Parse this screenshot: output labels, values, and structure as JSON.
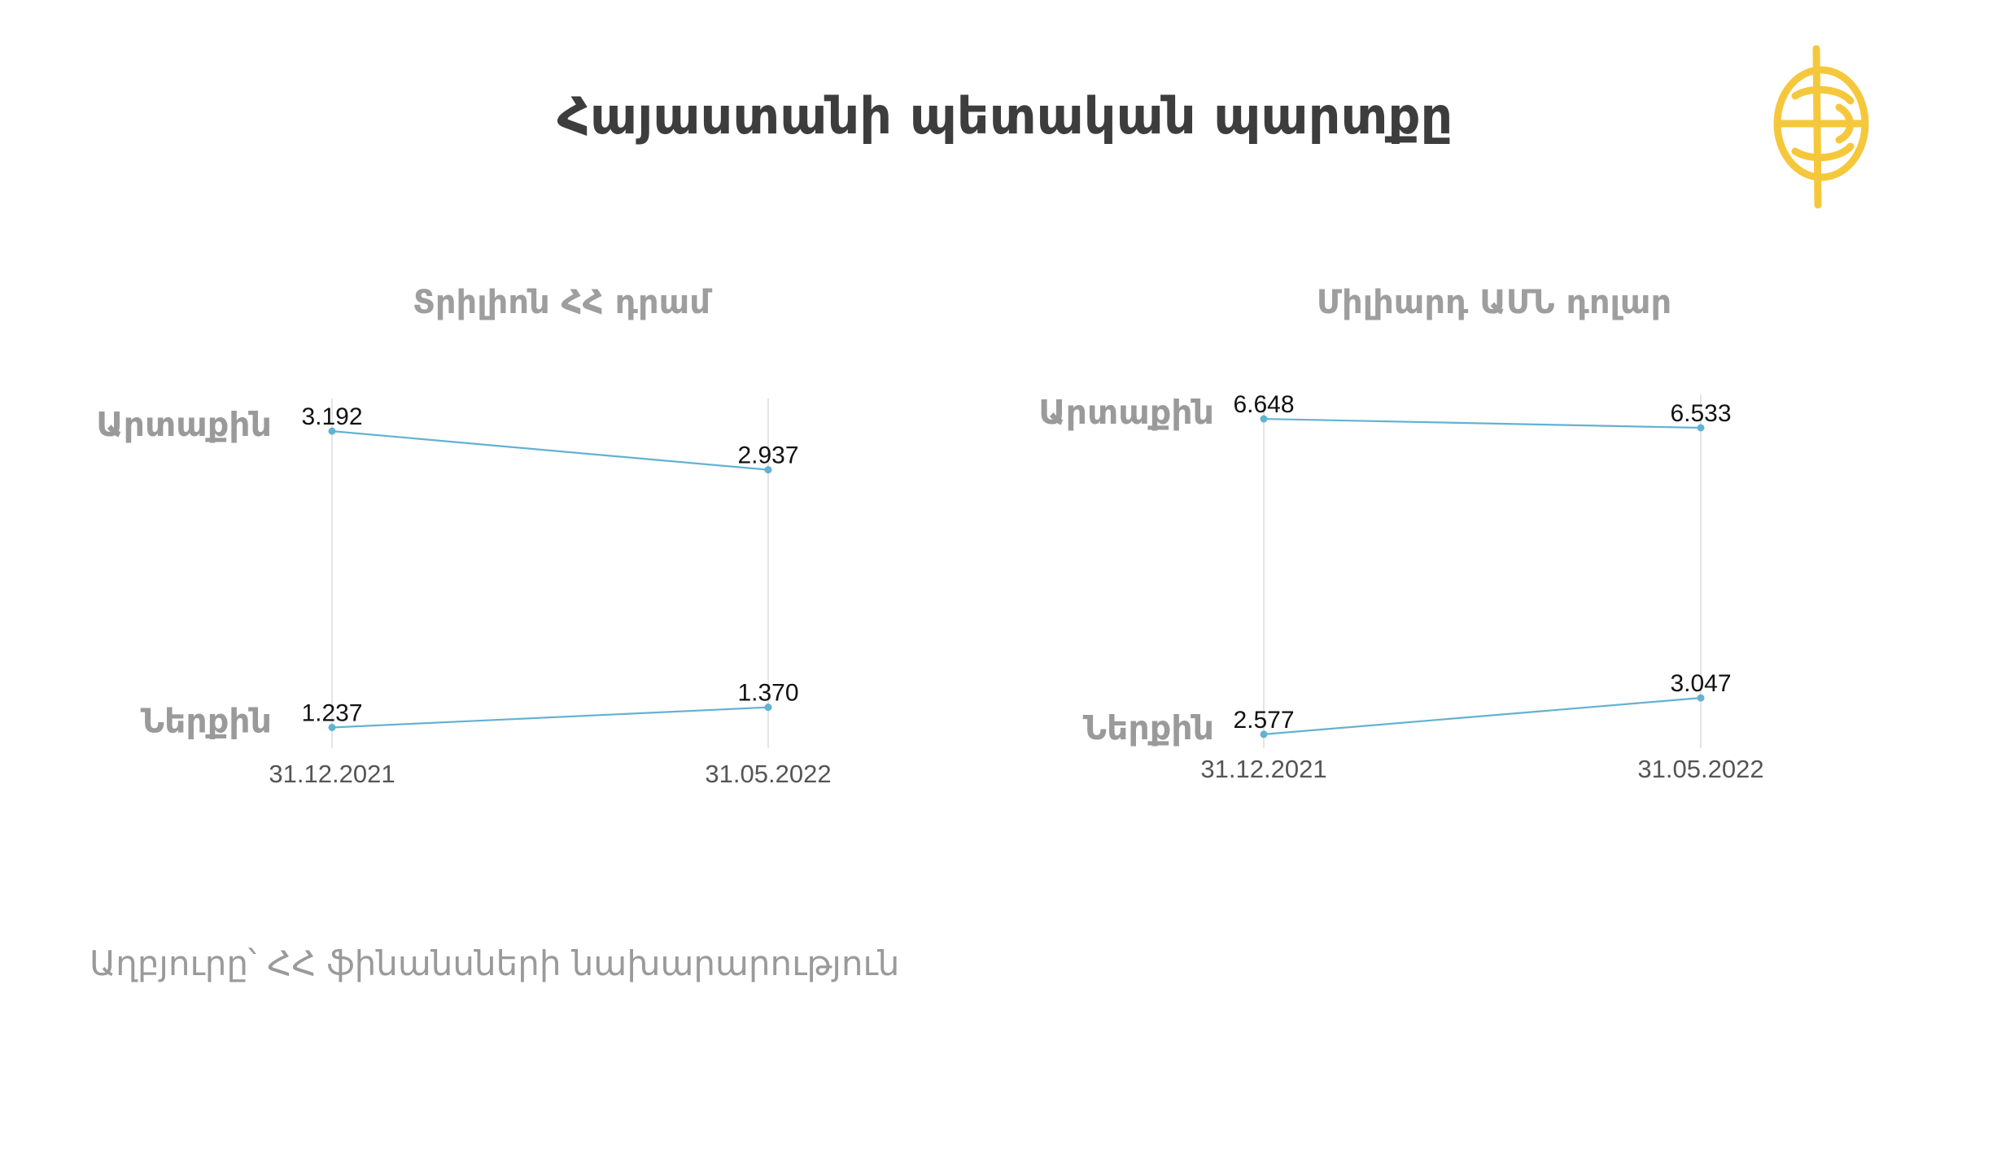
{
  "title": "Հայաստանի պետական պարտքը",
  "source": "Աղբյուրը՝ ՀՀ ֆինանսների նախարարություն",
  "colors": {
    "line": "#62b2d2",
    "logo": "#f5c83c",
    "title": "#3d3d3d",
    "label": "#9a9a9a"
  },
  "chart_data": [
    {
      "type": "line",
      "title": "Տրիլիոն ՀՀ դրամ",
      "categories": [
        "31.12.2021",
        "31.05.2022"
      ],
      "series": [
        {
          "name": "Արտաքին",
          "values": [
            "3.192",
            "2.937"
          ]
        },
        {
          "name": "Ներքին",
          "values": [
            "1.237",
            "1.370"
          ]
        }
      ],
      "grid": true
    },
    {
      "type": "line",
      "title": "Միլիարդ ԱՄՆ դոլար",
      "categories": [
        "31.12.2021",
        "31.05.2022"
      ],
      "series": [
        {
          "name": "Արտաքին",
          "values": [
            "6.648",
            "6.533"
          ]
        },
        {
          "name": "Ներքին",
          "values": [
            "2.577",
            "3.047"
          ]
        }
      ],
      "grid": true
    }
  ]
}
